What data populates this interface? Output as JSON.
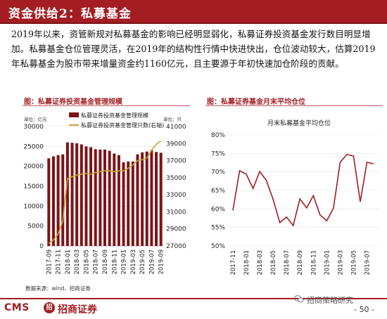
{
  "header": {
    "title": "资金供给2：私募基金"
  },
  "intro": {
    "paragraph": "2019年以来，资管新规对私募基金的影响已经明显弱化，私募证券投资基金发行数目明显增加。私募基金仓位管理灵活，在2019年的结构性行情中快进快出，仓位波动较大，估算2019年私募基金为股市带来增量资金约1160亿元，且主要源于年初快速加仓阶段的贡献。"
  },
  "colors": {
    "brand_red": "#a31d22",
    "bar": "#7b1417",
    "count_line": "#c9a230",
    "position_line": "#a31d22"
  },
  "left_panel": {
    "title": "图：私募证券投资基金管理规模",
    "left_unit": "单位：亿元",
    "right_unit": "单位：只"
  },
  "right_panel": {
    "title": "图：私募证券基金月末平均仓位"
  },
  "source": "数据来源：wind、招商证券",
  "footer": {
    "logo_cms": "CMS",
    "logo_mark": "招",
    "logo_cn": "招商证券",
    "watermark": "招商策略研究",
    "page_number": "- 50 -"
  },
  "chart_data": [
    {
      "type": "bar",
      "title": "",
      "legend_position": "top-left",
      "categories": [
        "2017-09",
        "2017-10",
        "2017-11",
        "2017-12",
        "2018-01",
        "2018-02",
        "2018-03",
        "2018-04",
        "2018-05",
        "2018-06",
        "2018-07",
        "2018-08",
        "2018-09",
        "2018-10",
        "2018-11",
        "2018-12",
        "2019-01",
        "2019-02",
        "2019-03",
        "2019-04",
        "2019-05",
        "2019-06",
        "2019-07",
        "2019-08",
        "2019-09"
      ],
      "tick_labels": [
        "2017-09",
        "2017-11",
        "2018-01",
        "2018-03",
        "2018-05",
        "2018-07",
        "2018-09",
        "2018-11",
        "2019-01",
        "2019-03",
        "2019-05",
        "2019-07",
        "2019-09"
      ],
      "series": [
        {
          "name": "私募证券投资基金管理规模",
          "type": "bar",
          "axis": "left",
          "values": [
            22000,
            22500,
            22800,
            23000,
            26000,
            25900,
            25800,
            25500,
            25000,
            24800,
            24300,
            24200,
            24200,
            23900,
            23200,
            22800,
            21000,
            21200,
            21200,
            23000,
            23500,
            23700,
            24000,
            23600,
            23400
          ]
        },
        {
          "name": "私募证券投资基金管理只数(右轴)",
          "type": "line",
          "axis": "right",
          "values": [
            27300,
            27700,
            28400,
            29900,
            34900,
            35100,
            35300,
            35400,
            35500,
            35400,
            35600,
            35700,
            35800,
            35800,
            35700,
            35800,
            35800,
            36100,
            36500,
            37000,
            37100,
            37300,
            38200,
            38900,
            39300
          ]
        }
      ],
      "ylim_left": [
        0,
        30000
      ],
      "yticks_left": [
        0,
        5000,
        10000,
        15000,
        20000,
        25000,
        30000
      ],
      "ylim_right": [
        27000,
        41000
      ],
      "yticks_right": [
        27000,
        29000,
        31000,
        33000,
        35000,
        37000,
        39000,
        41000
      ]
    },
    {
      "type": "line",
      "title": "",
      "legend_position": "top",
      "categories": [
        "2017-11",
        "2017-12",
        "2018-01",
        "2018-02",
        "2018-03",
        "2018-04",
        "2018-05",
        "2018-06",
        "2018-07",
        "2018-08",
        "2018-09",
        "2018-10",
        "2018-11",
        "2018-12",
        "2019-01",
        "2019-02",
        "2019-03",
        "2019-04",
        "2019-05",
        "2019-06",
        "2019-07",
        "2019-08"
      ],
      "tick_labels": [
        "2017-11",
        "2018-01",
        "2018-03",
        "2018-05",
        "2018-07",
        "2018-09",
        "2018-11",
        "2019-01",
        "2019-03",
        "2019-05",
        "2019-07"
      ],
      "series": [
        {
          "name": "月末私募基金平均仓位",
          "values": [
            59.6,
            70.3,
            69.4,
            65.5,
            70.1,
            67.7,
            62.6,
            56.3,
            57.8,
            55.5,
            62.7,
            60.3,
            63.6,
            58.4,
            56.8,
            60.2,
            72.6,
            74.7,
            74.3,
            61.9,
            72.6,
            72.2
          ]
        }
      ],
      "ylim": [
        50,
        80
      ],
      "yticks": [
        50,
        55,
        60,
        65,
        70,
        75,
        80
      ],
      "ytick_labels": [
        "50%",
        "55%",
        "60%",
        "65%",
        "70%",
        "75%",
        "80%"
      ]
    }
  ]
}
